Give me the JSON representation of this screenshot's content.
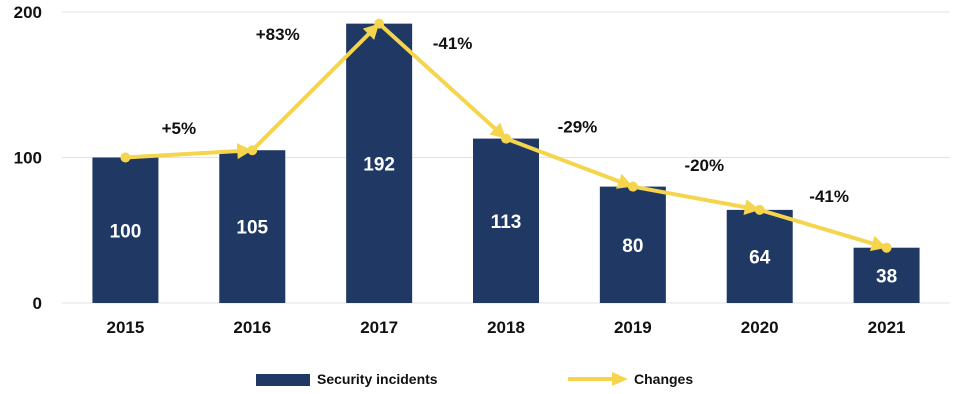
{
  "chart_data": {
    "type": "bar",
    "categories": [
      "2015",
      "2016",
      "2017",
      "2018",
      "2019",
      "2020",
      "2021"
    ],
    "series": [
      {
        "name": "Security incidents",
        "type": "bar",
        "values": [
          100,
          105,
          192,
          113,
          80,
          64,
          38
        ],
        "color": "#1f3864"
      },
      {
        "name": "Changes",
        "type": "line",
        "values": [
          100,
          105,
          192,
          113,
          80,
          64,
          38
        ],
        "color": "#f5d54e"
      }
    ],
    "change_labels": [
      "+5%",
      "+83%",
      "-41%",
      "-29%",
      "-20%",
      "-41%"
    ],
    "yticks": [
      "0",
      "100",
      "200"
    ],
    "ylim": [
      0,
      200
    ],
    "grid": true,
    "legend": "bottom"
  }
}
